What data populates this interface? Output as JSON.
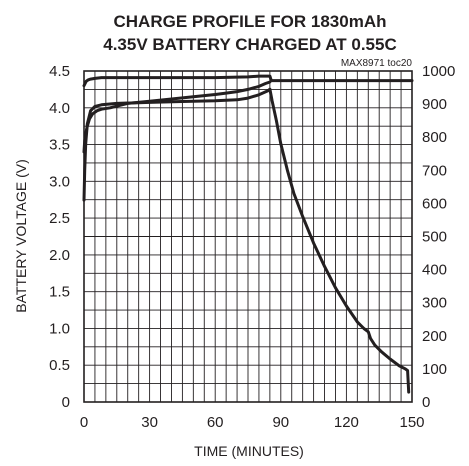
{
  "chart_data": {
    "type": "line",
    "title": [
      "CHARGE PROFILE FOR 1830mAh",
      "4.35V BATTERY CHARGED AT 0.55C"
    ],
    "annotation": "MAX8971 toc20",
    "xlabel": "TIME (MINUTES)",
    "ylabel": "BATTERY VOLTAGE (V)",
    "xlim": [
      0,
      150
    ],
    "ylim": [
      0,
      4.5
    ],
    "y2lim": [
      0,
      1000
    ],
    "x_ticks": [
      "0",
      "30",
      "60",
      "90",
      "120",
      "150"
    ],
    "y_ticks": [
      "0",
      "0.5",
      "1.0",
      "1.5",
      "2.0",
      "2.5",
      "3.0",
      "3.5",
      "4.0",
      "4.5"
    ],
    "y2_ticks": [
      "0",
      "100",
      "200",
      "300",
      "400",
      "500",
      "600",
      "700",
      "800",
      "900",
      "1000"
    ],
    "grid": true,
    "series": [
      {
        "axis": "left",
        "x": [
          0,
          0.3,
          0.8,
          1.5,
          2.5,
          4,
          6,
          8,
          12,
          16,
          20,
          30,
          40,
          50,
          60,
          65,
          70,
          75,
          80,
          83,
          85
        ],
        "y": [
          3.4,
          3.55,
          3.65,
          3.75,
          3.85,
          3.92,
          3.96,
          3.98,
          4.0,
          4.03,
          4.06,
          4.09,
          4.12,
          4.15,
          4.18,
          4.2,
          4.22,
          4.25,
          4.29,
          4.33,
          4.35
        ]
      },
      {
        "axis": "right",
        "x": [
          0,
          0.3,
          0.8,
          1.5,
          3,
          5,
          8,
          15,
          30,
          45,
          60,
          70,
          75,
          80,
          84,
          85,
          86,
          88,
          90,
          93,
          96,
          100,
          105,
          110,
          115,
          120,
          125,
          128,
          130,
          131,
          133,
          136,
          140,
          144,
          147,
          148,
          148.5
        ],
        "y": [
          610,
          700,
          780,
          840,
          880,
          893,
          898,
          902,
          905,
          908,
          910,
          913,
          918,
          928,
          940,
          945,
          910,
          850,
          780,
          700,
          630,
          560,
          480,
          410,
          345,
          290,
          242,
          222,
          212,
          192,
          172,
          152,
          130,
          110,
          100,
          95,
          30
        ]
      },
      {
        "axis": "left",
        "x": [
          0,
          0.5,
          1,
          2,
          3,
          5,
          8,
          20,
          40,
          60,
          75,
          80,
          84,
          85,
          85.5,
          86,
          90,
          120,
          150
        ],
        "y": [
          4.3,
          4.33,
          4.36,
          4.38,
          4.39,
          4.4,
          4.41,
          4.41,
          4.41,
          4.41,
          4.42,
          4.43,
          4.43,
          4.43,
          4.38,
          4.37,
          4.37,
          4.37,
          4.37
        ]
      }
    ]
  }
}
